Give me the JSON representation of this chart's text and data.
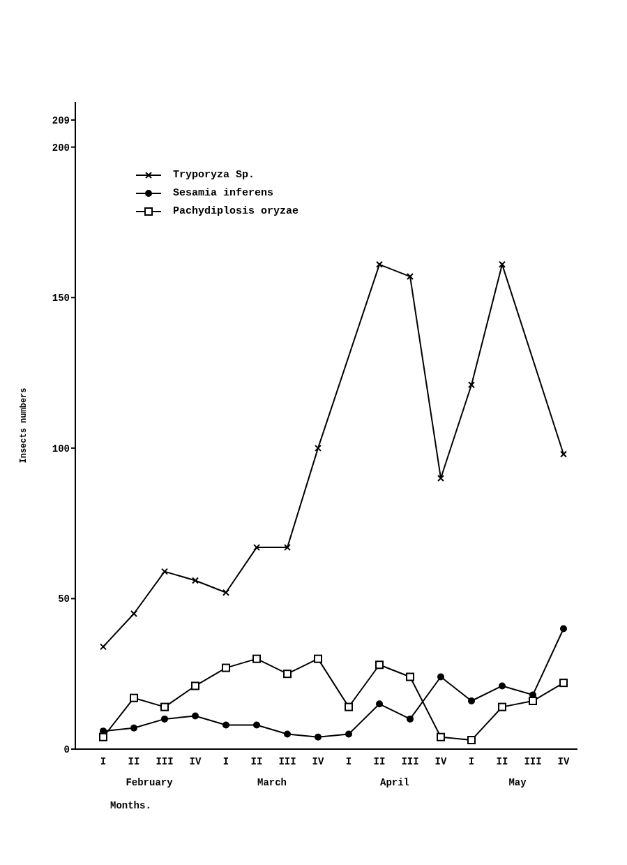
{
  "chart_data": {
    "type": "line",
    "categories": [
      "I",
      "II",
      "III",
      "IV",
      "I",
      "II",
      "III",
      "IV",
      "I",
      "II",
      "III",
      "IV",
      "I",
      "II",
      "III",
      "IV"
    ],
    "series": [
      {
        "name": "Tryporyza Sp.",
        "color": "#000000",
        "marker": "cross",
        "values": [
          34,
          45,
          59,
          56,
          52,
          67,
          67,
          100,
          null,
          161,
          157,
          90,
          121,
          161,
          null,
          98
        ]
      },
      {
        "name": "Sesamia inferens",
        "color": "#000000",
        "marker": "circle",
        "values": [
          6,
          7,
          10,
          11,
          8,
          8,
          5,
          4,
          5,
          15,
          10,
          24,
          16,
          21,
          18,
          40
        ]
      },
      {
        "name": "Pachydiplosis oryzae",
        "color": "#000000",
        "marker": "square",
        "values": [
          4,
          17,
          14,
          21,
          27,
          30,
          25,
          30,
          14,
          28,
          24,
          4,
          3,
          14,
          16,
          22
        ]
      }
    ],
    "xlabel": "Months.",
    "ylabel": "Insects numbers",
    "annotations": [
      "February",
      "March",
      "April",
      "May"
    ],
    "ylim": [
      0,
      215
    ],
    "yticks": [
      0,
      50,
      100,
      150,
      200,
      209
    ],
    "legend": "top left",
    "line_style": "solid"
  }
}
